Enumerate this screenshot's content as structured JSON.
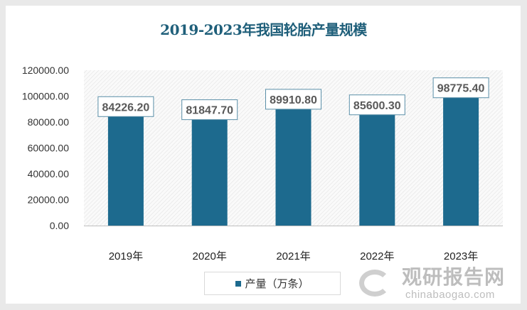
{
  "chart_data": {
    "type": "bar",
    "title": "2019-2023年我国轮胎产量规模",
    "categories": [
      "2019年",
      "2020年",
      "2021年",
      "2022年",
      "2023年"
    ],
    "series": [
      {
        "name": "产量（万条）",
        "values": [
          84226.2,
          81847.7,
          89910.8,
          85600.3,
          98775.4
        ]
      }
    ],
    "data_labels": [
      "84226.20",
      "81847.70",
      "89910.80",
      "85600.30",
      "98775.40"
    ],
    "ylim": [
      0,
      120000
    ],
    "yticks": [
      "0.00",
      "20000.00",
      "40000.00",
      "60000.00",
      "80000.00",
      "100000.00",
      "120000.00"
    ],
    "grid": false,
    "legend": "bottom",
    "colors": {
      "bar": "#1d6a8e",
      "title": "#1f5f7a",
      "label_border": "#5a8fa8"
    }
  },
  "watermark": {
    "cn": "观研报告网",
    "en": "chinabaogao.com"
  }
}
